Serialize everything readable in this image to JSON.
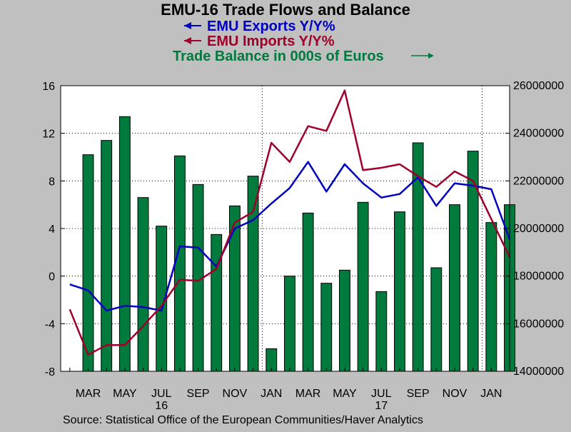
{
  "chart_data": {
    "type": "bar+line",
    "title": "EMU-16 Trade Flows and Balance",
    "legend": [
      {
        "label": "EMU Exports Y/Y%",
        "color": "#0000c0",
        "axis": "left",
        "arrow": "left"
      },
      {
        "label": "EMU Imports Y/Y%",
        "color": "#a0002a",
        "axis": "left",
        "arrow": "left"
      },
      {
        "label": "Trade Balance in 000s of Euros",
        "color": "#007a3d",
        "axis": "right",
        "arrow": "right"
      }
    ],
    "months": [
      "2016-02",
      "2016-03",
      "2016-04",
      "2016-05",
      "2016-06",
      "2016-07",
      "2016-08",
      "2016-09",
      "2016-10",
      "2016-11",
      "2016-12",
      "2017-01",
      "2017-02",
      "2017-03",
      "2017-04",
      "2017-05",
      "2017-06",
      "2017-07",
      "2017-08",
      "2017-09",
      "2017-10",
      "2017-11",
      "2017-12",
      "2018-01",
      "2018-02"
    ],
    "x_tick_labels": [
      "MAR",
      "MAY",
      "JUL",
      "SEP",
      "NOV",
      "JAN",
      "MAR",
      "MAY",
      "JUL",
      "SEP",
      "NOV",
      "JAN"
    ],
    "x_tick_month_index": [
      1,
      3,
      5,
      7,
      9,
      11,
      13,
      15,
      17,
      19,
      21,
      23
    ],
    "year_labels": [
      {
        "text": "16",
        "month_index": 5
      },
      {
        "text": "17",
        "month_index": 17
      }
    ],
    "left_axis": {
      "min": -8,
      "max": 16,
      "ticks": [
        -8,
        -4,
        0,
        4,
        8,
        12,
        16
      ]
    },
    "right_axis": {
      "min": 14000000,
      "max": 26000000,
      "ticks": [
        "14000000",
        "16000000",
        "18000000",
        "20000000",
        "22000000",
        "24000000",
        "26000000"
      ],
      "tick_values": [
        14000000,
        16000000,
        18000000,
        20000000,
        22000000,
        24000000,
        26000000
      ]
    },
    "series": [
      {
        "name": "EMU Exports Y/Y%",
        "axis": "left",
        "kind": "line",
        "values": [
          -0.7,
          -1.2,
          -2.9,
          -2.5,
          -2.6,
          -2.9,
          2.5,
          2.4,
          0.8,
          4.0,
          4.7,
          6.1,
          7.4,
          9.6,
          7.1,
          9.4,
          7.8,
          6.6,
          6.9,
          8.3,
          5.9,
          7.8,
          7.6,
          7.3,
          3.1
        ]
      },
      {
        "name": "EMU Imports Y/Y%",
        "axis": "left",
        "kind": "line",
        "values": [
          -2.8,
          -6.6,
          -5.8,
          -5.8,
          -4.2,
          -2.5,
          -0.3,
          -0.4,
          0.6,
          4.5,
          5.4,
          11.2,
          9.6,
          12.6,
          12.2,
          15.6,
          8.9,
          9.1,
          9.4,
          8.4,
          7.5,
          8.8,
          8.0,
          4.8,
          1.6
        ]
      },
      {
        "name": "Trade Balance in 000s of Euros",
        "axis": "right",
        "kind": "bar",
        "values": [
          null,
          23100000,
          23700000,
          24700000,
          21300000,
          20100000,
          23050000,
          21850000,
          19750000,
          20950000,
          22200000,
          14950000,
          18000000,
          20650000,
          17700000,
          18250000,
          21100000,
          17350000,
          20700000,
          23600000,
          18350000,
          21000000,
          23250000,
          20250000,
          21000000
        ]
      }
    ],
    "grid": true,
    "source": "Source:  Statistical Office of the European Communities/Haver Analytics"
  }
}
